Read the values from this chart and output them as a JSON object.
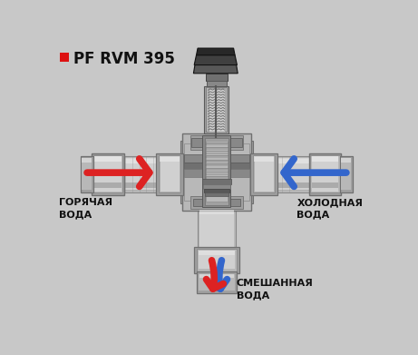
{
  "title_square_color": "#dd1111",
  "title_text": "PF RVM 395",
  "title_fontsize": 12,
  "background_color": "#c8c8c8",
  "label_hot": "ГОРЯЧАЯ\nВОДА",
  "label_cold": "ХОЛОДНАЯ\nВОДА",
  "label_mixed": "СМЕШАННАЯ\nВОДА",
  "label_fontsize": 8,
  "label_color": "#111111",
  "arrow_hot_color": "#dd2222",
  "arrow_cold_color": "#3366cc",
  "arrow_mixed_red": "#dd2222",
  "arrow_mixed_blue": "#3366cc",
  "fig_width": 4.61,
  "fig_height": 3.91,
  "dpi": 100,
  "colors": {
    "c1": "#e8e8e8",
    "c2": "#d0d0d0",
    "c3": "#b8b8b8",
    "c4": "#a0a0a0",
    "c5": "#888888",
    "c6": "#707070",
    "c7": "#585858",
    "c8": "#404040",
    "c9": "#282828",
    "c_black": "#101010",
    "c_white": "#f0f0f0"
  }
}
